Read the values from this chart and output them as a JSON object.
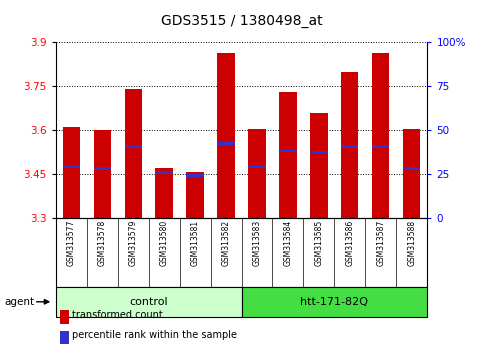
{
  "title": "GDS3515 / 1380498_at",
  "samples": [
    "GSM313577",
    "GSM313578",
    "GSM313579",
    "GSM313580",
    "GSM313581",
    "GSM313582",
    "GSM313583",
    "GSM313584",
    "GSM313585",
    "GSM313586",
    "GSM313587",
    "GSM313588"
  ],
  "bar_bottoms": [
    3.3,
    3.3,
    3.3,
    3.3,
    3.3,
    3.3,
    3.3,
    3.3,
    3.3,
    3.3,
    3.3,
    3.3
  ],
  "bar_tops": [
    3.61,
    3.6,
    3.74,
    3.47,
    3.455,
    3.865,
    3.605,
    3.73,
    3.66,
    3.8,
    3.865,
    3.605
  ],
  "blue_marks": [
    3.475,
    3.47,
    3.545,
    3.455,
    3.445,
    3.555,
    3.475,
    3.53,
    3.525,
    3.545,
    3.545,
    3.468
  ],
  "bar_color": "#cc0000",
  "blue_color": "#3333cc",
  "ylim_left": [
    3.3,
    3.9
  ],
  "ylim_right": [
    0,
    100
  ],
  "yticks_left": [
    3.3,
    3.45,
    3.6,
    3.75,
    3.9
  ],
  "yticks_right": [
    0,
    25,
    50,
    75,
    100
  ],
  "ytick_labels_right": [
    "0",
    "25",
    "50",
    "75",
    "100%"
  ],
  "groups": [
    {
      "label": "control",
      "start": 0,
      "end": 6,
      "color": "#ccffcc"
    },
    {
      "label": "htt-171-82Q",
      "start": 6,
      "end": 12,
      "color": "#44dd44"
    }
  ],
  "agent_label": "agent",
  "legend_red_label": "transformed count",
  "legend_blue_label": "percentile rank within the sample",
  "bar_width": 0.55,
  "grid_color": "black",
  "bg_color": "#ffffff",
  "plot_bg": "#ffffff",
  "tick_label_color": "#d0d0d0",
  "tick_sep_color": "#888888"
}
